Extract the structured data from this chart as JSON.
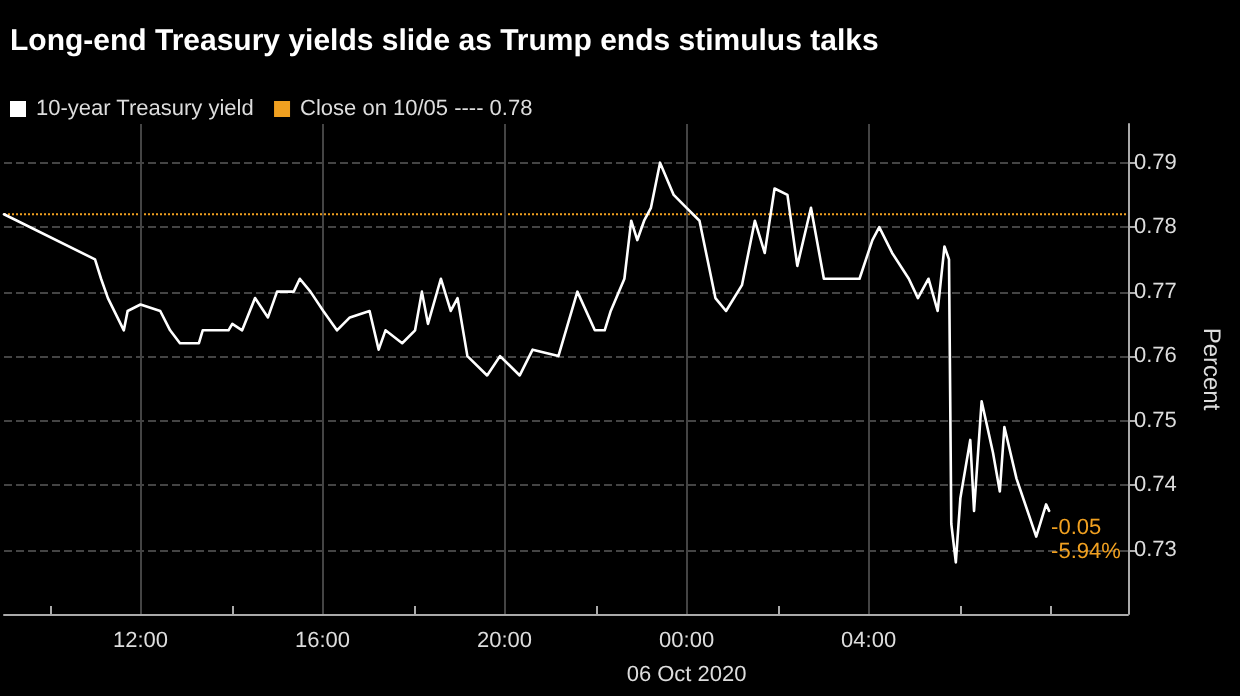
{
  "chart_data": {
    "type": "line",
    "title": "Long-end Treasury yields slide as Trump ends stimulus talks",
    "xlabel": "06 Oct 2020",
    "ylabel": "Percent",
    "xlim": [
      "2020-10-05T09:00",
      "2020-10-06T09:42"
    ],
    "xticks": [
      {
        "value": "2020-10-05T10:00",
        "label": null
      },
      {
        "value": "2020-10-05T12:00",
        "label": "12:00"
      },
      {
        "value": "2020-10-05T14:00",
        "label": null
      },
      {
        "value": "2020-10-05T16:00",
        "label": "16:00"
      },
      {
        "value": "2020-10-05T18:00",
        "label": null
      },
      {
        "value": "2020-10-05T20:00",
        "label": "20:00"
      },
      {
        "value": "2020-10-05T22:00",
        "label": null
      },
      {
        "value": "2020-10-06T00:00",
        "label": "00:00"
      },
      {
        "value": "2020-10-06T02:00",
        "label": null
      },
      {
        "value": "2020-10-06T04:00",
        "label": "04:00"
      },
      {
        "value": "2020-10-06T06:00",
        "label": null
      },
      {
        "value": "2020-10-06T08:00",
        "label": null
      }
    ],
    "ylim": [
      0.72,
      0.796
    ],
    "yticks": [
      0.73,
      0.74,
      0.75,
      0.76,
      0.77,
      0.78,
      0.79
    ],
    "grid": true,
    "legend": "top left",
    "marker": "none",
    "line_style": "solid",
    "x": [
      "2020-10-05T09:00",
      "2020-10-05T11:00",
      "2020-10-05T11:08",
      "2020-10-05T11:17",
      "2020-10-05T11:38",
      "2020-10-05T11:43",
      "2020-10-05T12:00",
      "2020-10-05T12:26",
      "2020-10-05T12:39",
      "2020-10-05T12:52",
      "2020-10-05T13:17",
      "2020-10-05T13:22",
      "2020-10-05T13:56",
      "2020-10-05T14:01",
      "2020-10-05T14:14",
      "2020-10-05T14:31",
      "2020-10-05T14:48",
      "2020-10-05T15:00",
      "2020-10-05T15:22",
      "2020-10-05T15:30",
      "2020-10-05T15:44",
      "2020-10-05T16:01",
      "2020-10-05T16:19",
      "2020-10-05T16:36",
      "2020-10-05T17:02",
      "2020-10-05T17:14",
      "2020-10-05T17:23",
      "2020-10-05T17:45",
      "2020-10-05T18:02",
      "2020-10-05T18:11",
      "2020-10-05T18:19",
      "2020-10-05T18:36",
      "2020-10-05T18:49",
      "2020-10-05T18:58",
      "2020-10-05T19:11",
      "2020-10-05T19:37",
      "2020-10-05T19:54",
      "2020-10-05T20:20",
      "2020-10-05T20:37",
      "2020-10-05T21:11",
      "2020-10-05T21:36",
      "2020-10-05T21:59",
      "2020-10-05T22:12",
      "2020-10-05T22:20",
      "2020-10-05T22:38",
      "2020-10-05T22:47",
      "2020-10-05T22:55",
      "2020-10-05T23:04",
      "2020-10-05T23:13",
      "2020-10-05T23:25",
      "2020-10-05T23:43",
      "2020-10-06T00:00",
      "2020-10-06T00:17",
      "2020-10-06T00:38",
      "2020-10-06T00:52",
      "2020-10-06T01:13",
      "2020-10-06T01:30",
      "2020-10-06T01:43",
      "2020-10-06T01:56",
      "2020-10-06T02:13",
      "2020-10-06T02:26",
      "2020-10-06T02:44",
      "2020-10-06T03:01",
      "2020-10-06T03:22",
      "2020-10-06T03:48",
      "2020-10-06T04:05",
      "2020-10-06T04:14",
      "2020-10-06T04:31",
      "2020-10-06T04:53",
      "2020-10-06T05:05",
      "2020-10-06T05:19",
      "2020-10-06T05:31",
      "2020-10-06T05:40",
      "2020-10-06T05:46",
      "2020-10-06T05:49",
      "2020-10-06T05:55",
      "2020-10-06T06:01",
      "2020-10-06T06:14",
      "2020-10-06T06:19",
      "2020-10-06T06:29",
      "2020-10-06T06:44",
      "2020-10-06T06:53",
      "2020-10-06T06:59",
      "2020-10-06T07:15",
      "2020-10-06T07:41",
      "2020-10-06T07:54",
      "2020-10-06T07:58"
    ],
    "series": [
      {
        "name": "10-year Treasury yield",
        "color": "#ffffff",
        "values": [
          0.782,
          0.775,
          0.772,
          0.769,
          0.764,
          0.767,
          0.768,
          0.767,
          0.764,
          0.762,
          0.762,
          0.764,
          0.764,
          0.765,
          0.764,
          0.769,
          0.766,
          0.77,
          0.77,
          0.772,
          0.77,
          0.767,
          0.764,
          0.766,
          0.767,
          0.761,
          0.764,
          0.762,
          0.764,
          0.77,
          0.765,
          0.772,
          0.767,
          0.769,
          0.76,
          0.757,
          0.76,
          0.757,
          0.761,
          0.76,
          0.77,
          0.764,
          0.764,
          0.767,
          0.772,
          0.781,
          0.778,
          0.781,
          0.783,
          0.79,
          0.785,
          0.783,
          0.781,
          0.769,
          0.767,
          0.771,
          0.781,
          0.776,
          0.786,
          0.785,
          0.774,
          0.783,
          0.772,
          0.772,
          0.772,
          0.778,
          0.78,
          0.776,
          0.772,
          0.769,
          0.772,
          0.767,
          0.777,
          0.775,
          0.734,
          0.728,
          0.738,
          0.747,
          0.736,
          0.753,
          0.745,
          0.739,
          0.749,
          0.741,
          0.732,
          0.737,
          0.736
        ]
      }
    ],
    "ref_lines": [
      {
        "axis": "y",
        "value": 0.782,
        "label": "Close on 10/05 ---- 0.78",
        "color": "#f0a020",
        "line_style": "dotted"
      }
    ],
    "annotations": [
      "-0.05",
      "-5.94%"
    ]
  }
}
